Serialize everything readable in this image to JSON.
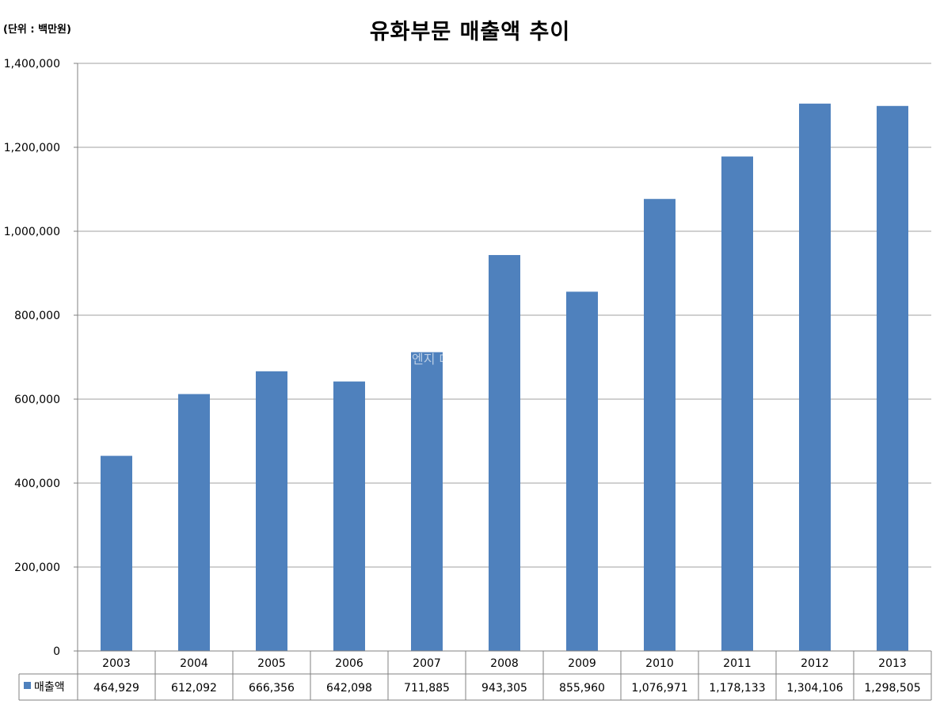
{
  "unit_label": "(단위 : 백만원)",
  "watermark": "엔지 데일리",
  "colors": {
    "bar": "#4f81bd",
    "grid": "#a0a0a0",
    "axis": "#808080"
  },
  "chart_data": {
    "type": "bar",
    "title": "유화부문 매출액 추이",
    "categories": [
      "2003",
      "2004",
      "2005",
      "2006",
      "2007",
      "2008",
      "2009",
      "2010",
      "2011",
      "2012",
      "2013"
    ],
    "series": [
      {
        "name": "매출액",
        "values": [
          464929,
          612092,
          666356,
          642098,
          711885,
          943305,
          855960,
          1076971,
          1178133,
          1304106,
          1298505
        ],
        "value_labels": [
          "464,929",
          "612,092",
          "666,356",
          "642,098",
          "711,885",
          "943,305",
          "855,960",
          "1,076,971",
          "1,178,133",
          "1,304,106",
          "1,298,505"
        ]
      }
    ],
    "ylim": [
      0,
      1400000
    ],
    "yticks": [
      0,
      200000,
      400000,
      600000,
      800000,
      1000000,
      1200000,
      1400000
    ],
    "ytick_labels": [
      "0",
      "200,000",
      "400,000",
      "600,000",
      "800,000",
      "1,000,000",
      "1,200,000",
      "1,400,000"
    ],
    "grid": true,
    "legend": "data-table",
    "xlabel": "",
    "ylabel": ""
  }
}
